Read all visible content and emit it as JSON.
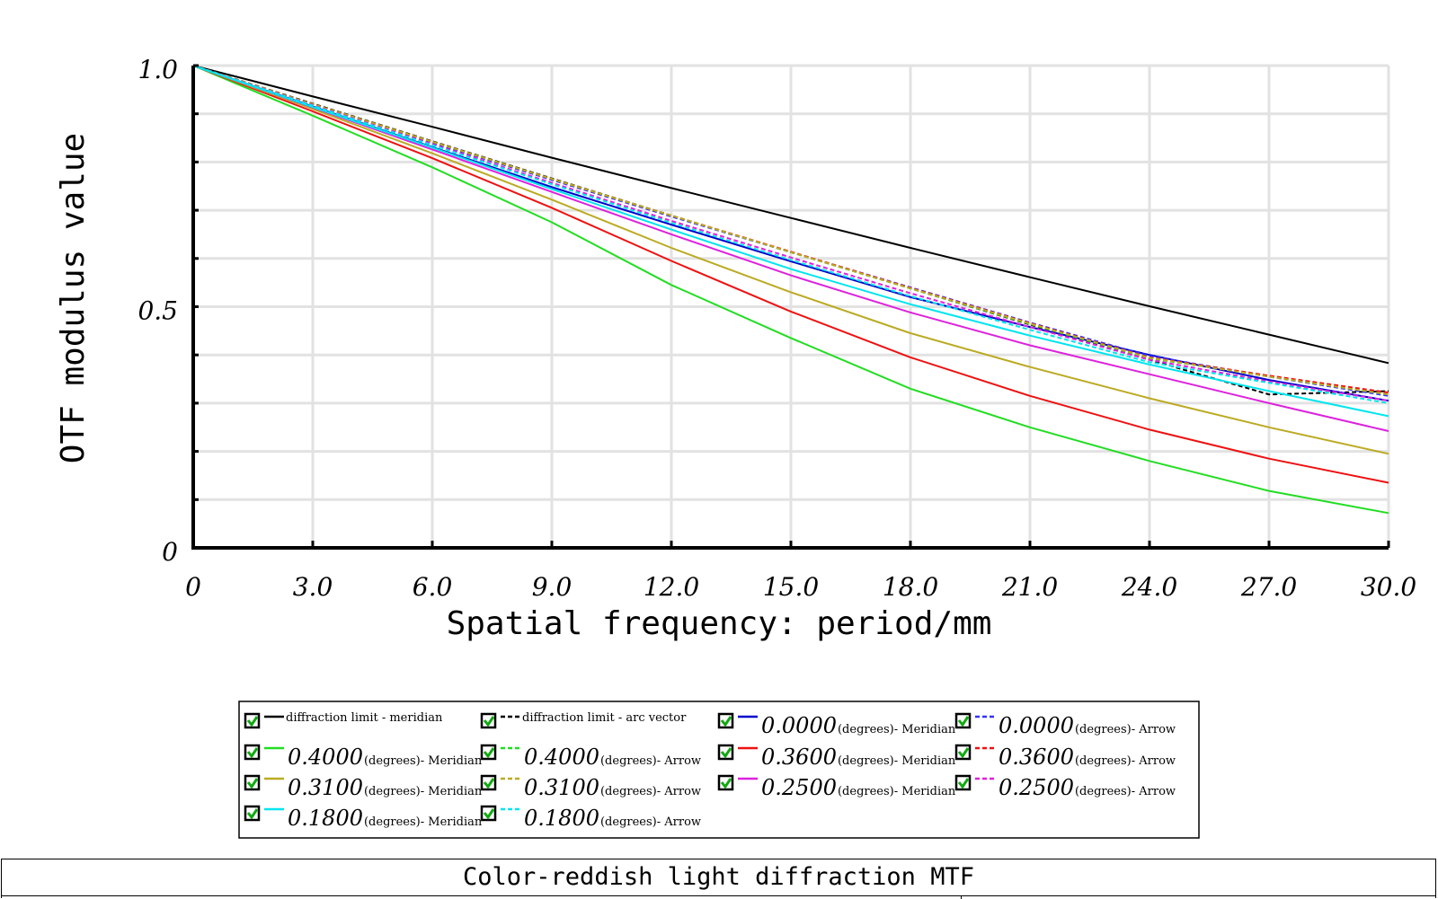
{
  "chart_data": {
    "type": "line",
    "xlabel": "Spatial frequency: period/mm",
    "ylabel": "OTF modulus value",
    "xlim": [
      0,
      30
    ],
    "ylim": [
      0,
      1
    ],
    "xticks": [
      "0",
      "3.0",
      "6.0",
      "9.0",
      "12.0",
      "15.0",
      "18.0",
      "21.0",
      "24.0",
      "27.0",
      "30.0"
    ],
    "yticks": [
      "0",
      "0.5",
      "1.0"
    ],
    "grid": true,
    "legend_position": "bottom",
    "x": [
      0,
      3,
      6,
      9,
      12,
      15,
      18,
      21,
      24,
      27,
      30
    ],
    "series": [
      {
        "name": "diffraction limit - meridian",
        "number": "",
        "suffix": "",
        "color": "#000000",
        "dash": false,
        "values": [
          1.0,
          0.936,
          0.873,
          0.809,
          0.746,
          0.684,
          0.622,
          0.561,
          0.501,
          0.442,
          0.383
        ]
      },
      {
        "name": "diffraction limit - arc vector",
        "number": "",
        "suffix": "",
        "color": "#000000",
        "dash": true,
        "values": [
          1.0,
          0.921,
          0.843,
          0.766,
          0.689,
          0.613,
          0.538,
          0.463,
          0.39,
          0.318,
          0.325
        ]
      },
      {
        "name": "",
        "number": "0.0000",
        "suffix": "(degrees)- Meridian",
        "color": "#0000cc",
        "dash": false,
        "values": [
          1.0,
          0.915,
          0.831,
          0.748,
          0.67,
          0.594,
          0.52,
          0.458,
          0.4,
          0.348,
          0.305
        ]
      },
      {
        "name": "",
        "number": "0.0000",
        "suffix": "(degrees)- Arrow",
        "color": "#3333ff",
        "dash": true,
        "values": [
          1.0,
          0.919,
          0.84,
          0.763,
          0.687,
          0.613,
          0.54,
          0.467,
          0.398,
          0.355,
          0.315
        ]
      },
      {
        "name": "",
        "number": "0.4000",
        "suffix": "(degrees)- Meridian",
        "color": "#22dd22",
        "dash": false,
        "values": [
          1.0,
          0.896,
          0.789,
          0.675,
          0.545,
          0.435,
          0.33,
          0.25,
          0.18,
          0.118,
          0.072
        ]
      },
      {
        "name": "",
        "number": "0.4000",
        "suffix": "(degrees)- Arrow",
        "color": "#22dd22",
        "dash": true,
        "values": [
          1.0,
          0.92,
          0.842,
          0.765,
          0.689,
          0.613,
          0.538,
          0.464,
          0.393,
          0.356,
          0.318
        ]
      },
      {
        "name": "",
        "number": "0.3600",
        "suffix": "(degrees)- Meridian",
        "color": "#ee1111",
        "dash": false,
        "values": [
          1.0,
          0.905,
          0.808,
          0.705,
          0.595,
          0.49,
          0.395,
          0.315,
          0.245,
          0.185,
          0.135
        ]
      },
      {
        "name": "",
        "number": "0.3600",
        "suffix": "(degrees)- Arrow",
        "color": "#ee1111",
        "dash": true,
        "values": [
          1.0,
          0.92,
          0.842,
          0.765,
          0.689,
          0.614,
          0.539,
          0.466,
          0.395,
          0.357,
          0.322
        ]
      },
      {
        "name": "",
        "number": "0.3100",
        "suffix": "(degrees)- Meridian",
        "color": "#bbaa22",
        "dash": false,
        "values": [
          1.0,
          0.91,
          0.818,
          0.722,
          0.622,
          0.53,
          0.445,
          0.375,
          0.31,
          0.25,
          0.195
        ]
      },
      {
        "name": "",
        "number": "0.3100",
        "suffix": "(degrees)- Arrow",
        "color": "#bbaa22",
        "dash": true,
        "values": [
          1.0,
          0.92,
          0.842,
          0.765,
          0.689,
          0.613,
          0.538,
          0.465,
          0.394,
          0.355,
          0.318
        ]
      },
      {
        "name": "",
        "number": "0.2500",
        "suffix": "(degrees)- Meridian",
        "color": "#dd22dd",
        "dash": false,
        "values": [
          1.0,
          0.913,
          0.826,
          0.738,
          0.65,
          0.565,
          0.488,
          0.42,
          0.36,
          0.3,
          0.242
        ]
      },
      {
        "name": "",
        "number": "0.2500",
        "suffix": "(degrees)- Arrow",
        "color": "#dd22dd",
        "dash": true,
        "values": [
          1.0,
          0.918,
          0.837,
          0.757,
          0.678,
          0.602,
          0.528,
          0.458,
          0.39,
          0.345,
          0.305
        ]
      },
      {
        "name": "",
        "number": "0.1800",
        "suffix": "(degrees)- Meridian",
        "color": "#00e5ee",
        "dash": false,
        "values": [
          1.0,
          0.914,
          0.83,
          0.744,
          0.66,
          0.578,
          0.505,
          0.44,
          0.38,
          0.325,
          0.273
        ]
      },
      {
        "name": "",
        "number": "0.1800",
        "suffix": "(degrees)- Arrow",
        "color": "#00e5ee",
        "dash": true,
        "values": [
          1.0,
          0.917,
          0.835,
          0.754,
          0.674,
          0.597,
          0.522,
          0.452,
          0.385,
          0.342,
          0.3
        ]
      }
    ]
  },
  "footer": {
    "title": "Color-reddish light diffraction MTF"
  }
}
